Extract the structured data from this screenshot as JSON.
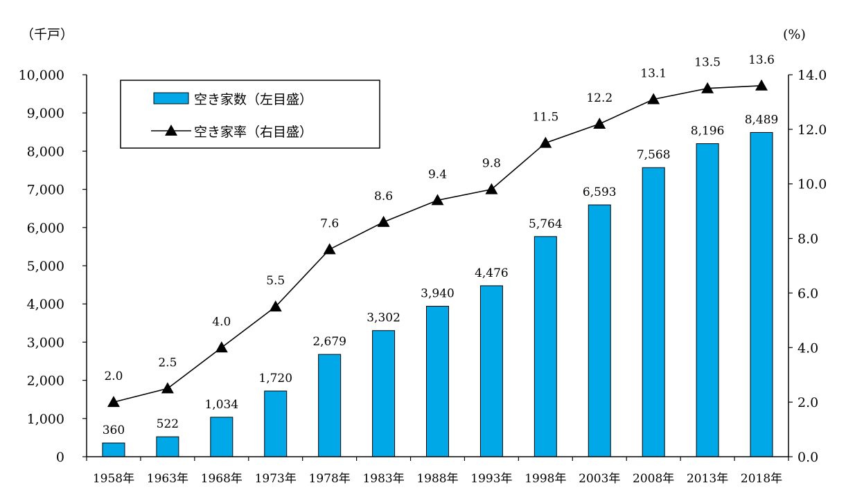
{
  "chart_data": {
    "type": "bar+line",
    "categories": [
      "1958年",
      "1963年",
      "1968年",
      "1973年",
      "1978年",
      "1983年",
      "1988年",
      "1993年",
      "1998年",
      "2003年",
      "2008年",
      "2013年",
      "2018年"
    ],
    "series": [
      {
        "name": "空き家数（左目盛）",
        "type": "bar",
        "axis": "left",
        "values": [
          360,
          522,
          1034,
          1720,
          2679,
          3302,
          3940,
          4476,
          5764,
          6593,
          7568,
          8196,
          8489
        ],
        "labels": [
          "360",
          "522",
          "1,034",
          "1,720",
          "2,679",
          "3,302",
          "3,940",
          "4,476",
          "5,764",
          "6,593",
          "7,568",
          "8,196",
          "8,489"
        ],
        "color": "#00a8e8"
      },
      {
        "name": "空き家率（右目盛）",
        "type": "line",
        "axis": "right",
        "values": [
          2.0,
          2.5,
          4.0,
          5.5,
          7.6,
          8.6,
          9.4,
          9.8,
          11.5,
          12.2,
          13.1,
          13.5,
          13.6
        ],
        "labels": [
          "2.0",
          "2.5",
          "4.0",
          "5.5",
          "7.6",
          "8.6",
          "9.4",
          "9.8",
          "11.5",
          "12.2",
          "13.1",
          "13.5",
          "13.6"
        ],
        "color": "#000000",
        "marker": "triangle"
      }
    ],
    "y_left": {
      "unit": "（千戸）",
      "ylim": [
        0,
        10000
      ],
      "ticks": [
        0,
        1000,
        2000,
        3000,
        4000,
        5000,
        6000,
        7000,
        8000,
        9000,
        10000
      ],
      "tick_labels": [
        "0",
        "1,000",
        "2,000",
        "3,000",
        "4,000",
        "5,000",
        "6,000",
        "7,000",
        "8,000",
        "9,000",
        "10,000"
      ]
    },
    "y_right": {
      "unit": "(%)",
      "ylim": [
        0,
        14
      ],
      "ticks": [
        0,
        2,
        4,
        6,
        8,
        10,
        12,
        14
      ],
      "tick_labels": [
        "0.0",
        "2.0",
        "4.0",
        "6.0",
        "8.0",
        "10.0",
        "12.0",
        "14.0"
      ]
    },
    "grid": false,
    "legend_position": "top-left"
  }
}
